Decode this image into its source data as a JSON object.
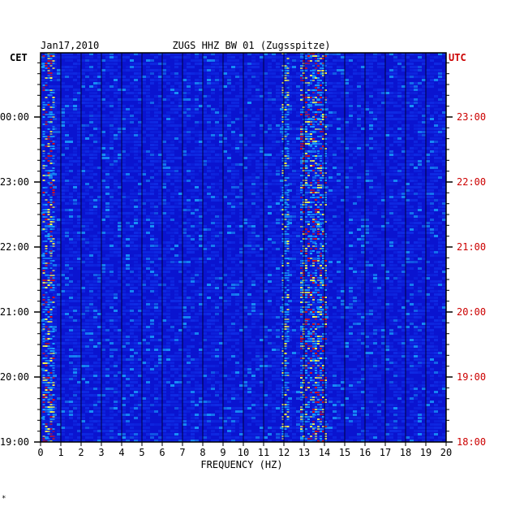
{
  "chart_data": {
    "type": "heatmap",
    "title": "ZUGS HHZ BW 01 (Zugsspitze)",
    "date": "Jan17,2010",
    "xlabel": "FREQUENCY (HZ)",
    "xlim": [
      0,
      20
    ],
    "x_ticks": [
      "0",
      "1",
      "2",
      "3",
      "4",
      "5",
      "6",
      "7",
      "8",
      "9",
      "10",
      "11",
      "12",
      "13",
      "14",
      "15",
      "16",
      "17",
      "18",
      "19",
      "20"
    ],
    "left_axis": {
      "label": "CET",
      "ticks": [
        "00:00",
        "23:00",
        "22:00",
        "21:00",
        "20:00",
        "19:00"
      ]
    },
    "right_axis": {
      "label": "UTC",
      "ticks": [
        "23:00",
        "22:00",
        "21:00",
        "20:00",
        "19:00",
        "18:00"
      ]
    },
    "colors": {
      "background": "#0a14d0",
      "low": "#1030e8",
      "mid": "#19a8ff",
      "high": "#ffff40",
      "peak": "#e01010",
      "right_axis_text": "#cc0000"
    },
    "energy_bands": [
      {
        "freq_range": [
          0.1,
          0.7
        ],
        "intensity": "high"
      },
      {
        "freq_range": [
          11.9,
          12.2
        ],
        "intensity": "moderate"
      },
      {
        "freq_range": [
          12.8,
          14.1
        ],
        "intensity": "high"
      }
    ],
    "footer_mark": "*"
  }
}
